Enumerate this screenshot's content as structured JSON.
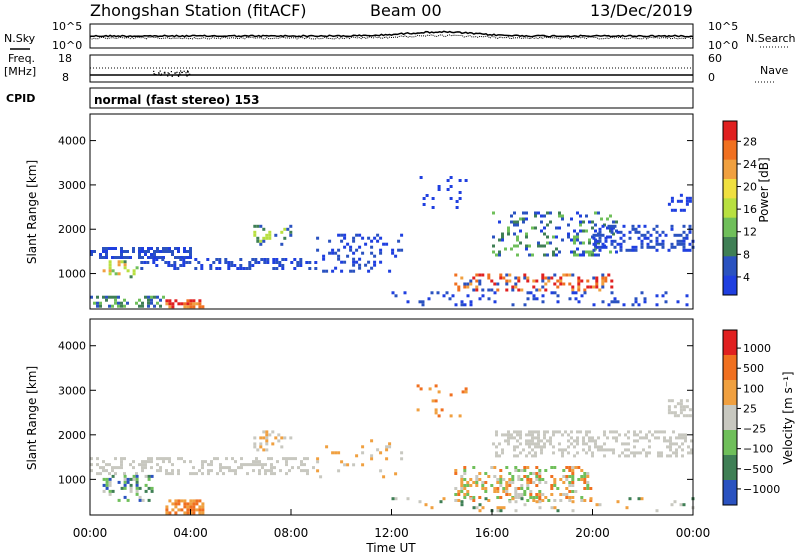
{
  "header": {
    "station": "Zhongshan Station (fitACF)",
    "beam": "Beam 00",
    "date": "13/Dec/2019"
  },
  "strip_labels": {
    "nsky": "N.Sky",
    "nsearch": "N.Search",
    "freq_line1": "Freq.",
    "freq_line2": "[MHz]",
    "nave": "Nave",
    "cpid": "CPID",
    "cpid_value": "normal (fast stereo) 153",
    "noise_ticks_left": [
      "10^5",
      "10^0"
    ],
    "noise_ticks_right": [
      "10^5",
      "10^0"
    ],
    "freq_ticks_left": [
      "18",
      "8"
    ],
    "freq_ticks_right": [
      "60",
      "0"
    ]
  },
  "colors": {
    "power_scale": [
      "#1f3fe0",
      "#2a52c0",
      "#3f7f55",
      "#6fbf5a",
      "#b8e040",
      "#f0e040",
      "#f0a040",
      "#f07020",
      "#e02020"
    ],
    "velocity_scale": [
      "#2a52c0",
      "#3f7f55",
      "#6fbf5a",
      "#c8c8c0",
      "#f0a040",
      "#f07020",
      "#e02020"
    ],
    "noise_line": "#000000"
  },
  "chart_data": [
    {
      "type": "heatmap",
      "name": "power",
      "ylabel": "Slant Range [km]",
      "ytick_labels": [
        "1000",
        "2000",
        "3000",
        "4000"
      ],
      "ylim": [
        200,
        4600
      ],
      "xlim": [
        0,
        24
      ],
      "colorbar_label": "Power [dB]",
      "colorbar_ticks": [
        "28",
        "24",
        "20",
        "16",
        "12",
        "8",
        "4"
      ],
      "colorbar_range": [
        0,
        30
      ]
    },
    {
      "type": "heatmap",
      "name": "velocity",
      "ylabel": "Slant Range [km]",
      "ytick_labels": [
        "1000",
        "2000",
        "3000",
        "4000"
      ],
      "ylim": [
        200,
        4600
      ],
      "xlim": [
        0,
        24
      ],
      "xlabel": "Time UT",
      "xtick_labels": [
        "00:00",
        "04:00",
        "08:00",
        "12:00",
        "16:00",
        "20:00",
        "00:00"
      ],
      "colorbar_label": "Velocity [m s⁻¹]",
      "colorbar_ticks": [
        "1000",
        "500",
        "100",
        "25",
        "−25",
        "−100",
        "−500",
        "−1000"
      ]
    }
  ]
}
